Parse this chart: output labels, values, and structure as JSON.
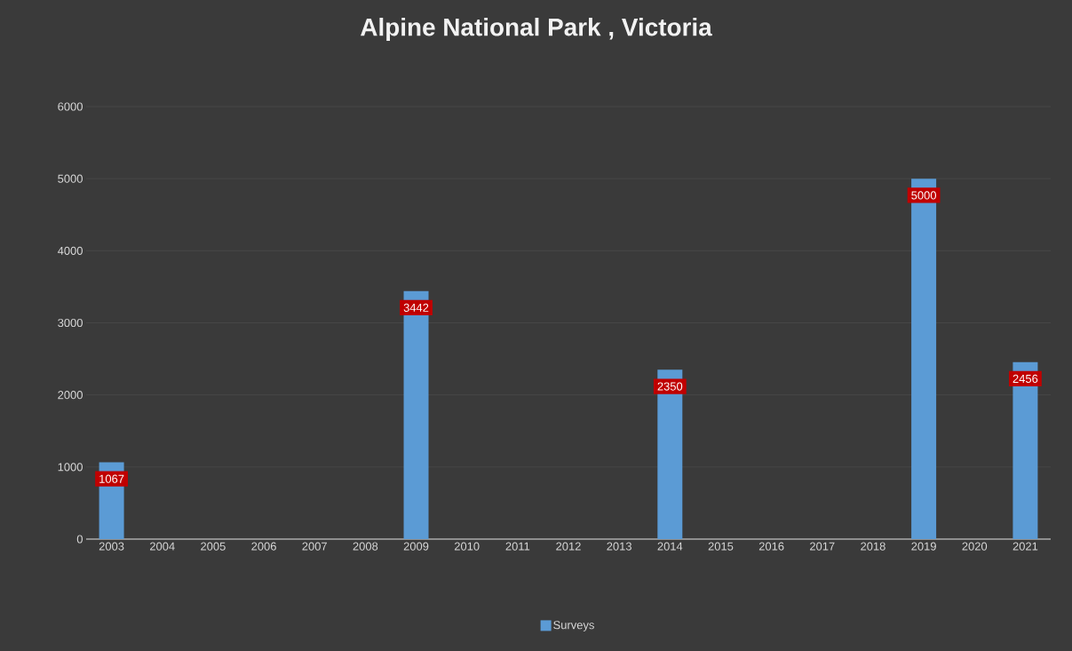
{
  "chart_data": {
    "type": "bar",
    "title": "Alpine National Park , Victoria",
    "categories": [
      "2003",
      "2004",
      "2005",
      "2006",
      "2007",
      "2008",
      "2009",
      "2010",
      "2011",
      "2012",
      "2013",
      "2014",
      "2015",
      "2016",
      "2017",
      "2018",
      "2019",
      "2020",
      "2021"
    ],
    "series": [
      {
        "name": "Surveys",
        "color": "#5b9bd5",
        "values": [
          1067,
          null,
          null,
          null,
          null,
          null,
          3442,
          null,
          null,
          null,
          null,
          2350,
          null,
          null,
          null,
          null,
          5000,
          null,
          2456
        ],
        "value_labels": [
          "1067",
          null,
          null,
          null,
          null,
          null,
          "3442",
          null,
          null,
          null,
          null,
          "2350",
          null,
          null,
          null,
          null,
          "5000",
          null,
          "2456"
        ]
      }
    ],
    "ylim": [
      0,
      6000
    ],
    "yticks": [
      0,
      1000,
      2000,
      3000,
      4000,
      5000,
      6000
    ],
    "grid": "y",
    "legend": "bottom"
  }
}
